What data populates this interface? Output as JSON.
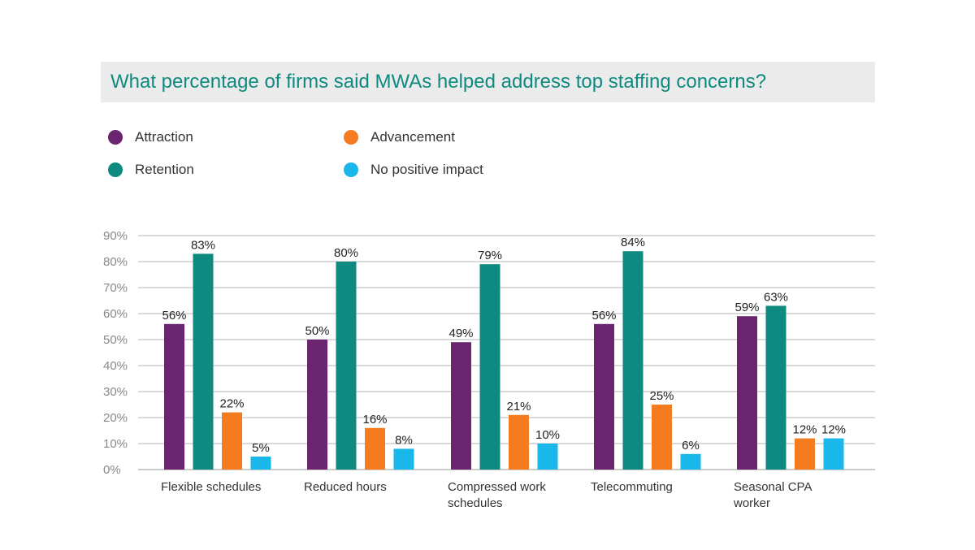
{
  "chart_data": {
    "type": "bar",
    "title": "What percentage of firms said MWAs helped address top staffing concerns?",
    "categories": [
      [
        "Flexible schedules"
      ],
      [
        "Reduced hours"
      ],
      [
        "Compressed work",
        "schedules"
      ],
      [
        "Telecommuting"
      ],
      [
        "Seasonal CPA",
        "worker"
      ]
    ],
    "series": [
      {
        "name": "Attraction",
        "color": "#6b2470",
        "values": [
          56,
          50,
          49,
          56,
          59
        ],
        "labels": [
          "56%",
          "50%",
          "49%",
          "56%",
          "59%"
        ]
      },
      {
        "name": "Retention",
        "color": "#0f8a80",
        "values": [
          83,
          80,
          79,
          84,
          63
        ],
        "labels": [
          "83%",
          "80%",
          "79%",
          "84%",
          "63%"
        ]
      },
      {
        "name": "Advancement",
        "color": "#f47b20",
        "values": [
          22,
          16,
          21,
          25,
          12
        ],
        "labels": [
          "22%",
          "16%",
          "21%",
          "25%",
          "12%"
        ]
      },
      {
        "name": "No positive impact",
        "color": "#1ab8ea",
        "values": [
          5,
          8,
          10,
          6,
          12
        ],
        "labels": [
          "5%",
          "8%",
          "10%",
          "6%",
          "12%"
        ]
      }
    ],
    "ylim": [
      0,
      90
    ],
    "yticks": [
      "0%",
      "10%",
      "20%",
      "30%",
      "40%",
      "50%",
      "60%",
      "70%",
      "80%",
      "90%"
    ],
    "grid": true,
    "legend_position": "top-left"
  }
}
